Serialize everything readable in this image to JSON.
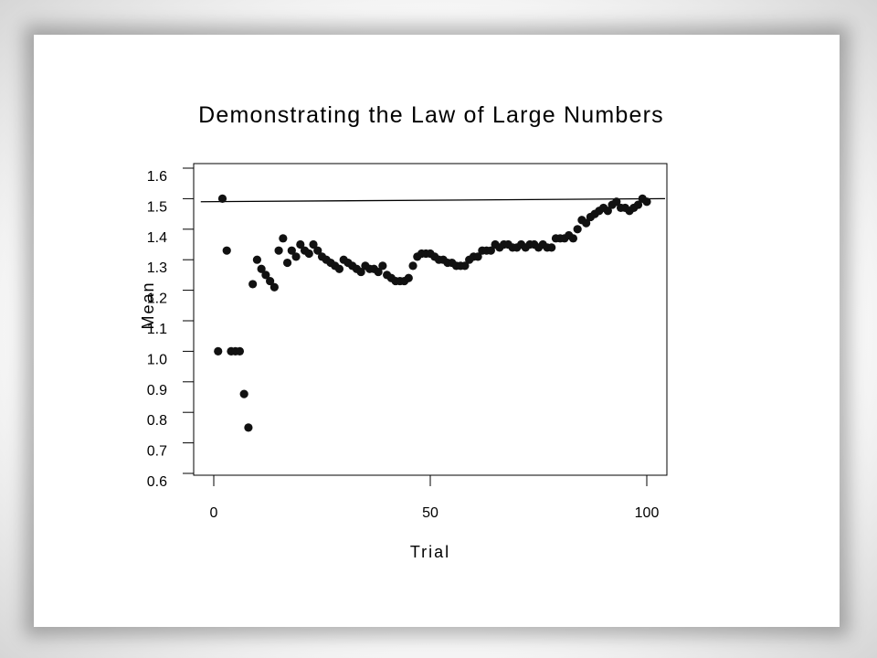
{
  "chart_data": {
    "type": "scatter",
    "title": "Demonstrating the Law of Large Numbers",
    "xlabel": "Trial",
    "ylabel": "Mean",
    "xlim": [
      -3,
      104
    ],
    "ylim": [
      0.6,
      1.6
    ],
    "xticks": [
      "0",
      "50",
      "100"
    ],
    "xtick_values": [
      0,
      50,
      100
    ],
    "yticks": [
      "0.6",
      "0.7",
      "0.8",
      "0.9",
      "1.0",
      "1.1",
      "1.2",
      "1.3",
      "1.4",
      "1.5",
      "1.6"
    ],
    "ytick_values": [
      0.6,
      0.7,
      0.8,
      0.9,
      1.0,
      1.1,
      1.2,
      1.3,
      1.4,
      1.5,
      1.6
    ],
    "reference_line": {
      "y_start": 1.49,
      "y_end": 1.5
    },
    "grid": false,
    "x": [
      1,
      2,
      3,
      4,
      5,
      6,
      7,
      8,
      9,
      10,
      11,
      12,
      13,
      14,
      15,
      16,
      17,
      18,
      19,
      20,
      21,
      22,
      23,
      24,
      25,
      26,
      27,
      28,
      29,
      30,
      31,
      32,
      33,
      34,
      35,
      36,
      37,
      38,
      39,
      40,
      41,
      42,
      43,
      44,
      45,
      46,
      47,
      48,
      49,
      50,
      51,
      52,
      53,
      54,
      55,
      56,
      57,
      58,
      59,
      60,
      61,
      62,
      63,
      64,
      65,
      66,
      67,
      68,
      69,
      70,
      71,
      72,
      73,
      74,
      75,
      76,
      77,
      78,
      79,
      80,
      81,
      82,
      83,
      84,
      85,
      86,
      87,
      88,
      89,
      90,
      91,
      92,
      93,
      94,
      95,
      96,
      97,
      98,
      99,
      100
    ],
    "y": [
      1.0,
      1.5,
      1.33,
      1.0,
      1.0,
      1.0,
      0.86,
      0.75,
      1.22,
      1.3,
      1.27,
      1.25,
      1.23,
      1.21,
      1.33,
      1.37,
      1.29,
      1.33,
      1.31,
      1.35,
      1.33,
      1.32,
      1.35,
      1.33,
      1.31,
      1.3,
      1.29,
      1.28,
      1.27,
      1.3,
      1.29,
      1.28,
      1.27,
      1.26,
      1.28,
      1.27,
      1.27,
      1.26,
      1.28,
      1.25,
      1.24,
      1.23,
      1.23,
      1.23,
      1.24,
      1.28,
      1.31,
      1.32,
      1.32,
      1.32,
      1.31,
      1.3,
      1.3,
      1.29,
      1.29,
      1.28,
      1.28,
      1.28,
      1.3,
      1.31,
      1.31,
      1.33,
      1.33,
      1.33,
      1.35,
      1.34,
      1.35,
      1.35,
      1.34,
      1.34,
      1.35,
      1.34,
      1.35,
      1.35,
      1.34,
      1.35,
      1.34,
      1.34,
      1.37,
      1.37,
      1.37,
      1.38,
      1.37,
      1.4,
      1.43,
      1.42,
      1.44,
      1.45,
      1.46,
      1.47,
      1.46,
      1.48,
      1.49,
      1.47,
      1.47,
      1.46,
      1.47,
      1.48,
      1.5,
      1.49
    ]
  }
}
